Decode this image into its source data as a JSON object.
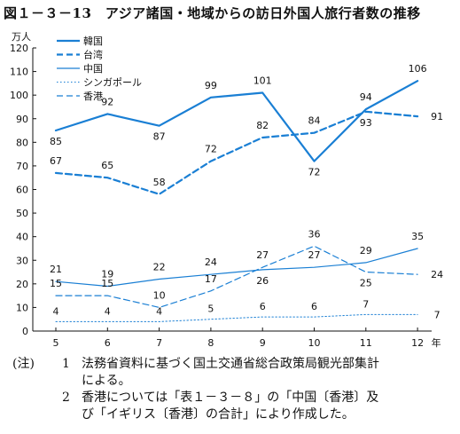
{
  "chart_data": {
    "type": "line",
    "title": "図１－３－13　アジア諸国・地域からの訪日外国人旅行者数の推移",
    "yunit": "万人",
    "xunit": "年",
    "x": [
      "5",
      "6",
      "7",
      "8",
      "9",
      "10",
      "11",
      "12"
    ],
    "ylim": [
      0,
      120
    ],
    "yticks": [
      0,
      10,
      20,
      30,
      40,
      50,
      60,
      70,
      80,
      90,
      100,
      110,
      120
    ],
    "grid": false,
    "legend_position": "top-left",
    "series": [
      {
        "name": "韓国",
        "style": "solid-thick",
        "color": "#1a7fd4",
        "values": [
          85,
          92,
          87,
          99,
          101,
          72,
          94,
          106
        ],
        "labels": [
          "85",
          "92",
          "87",
          "99",
          "101",
          "72",
          "94",
          "106"
        ]
      },
      {
        "name": "台湾",
        "style": "dashed-thick",
        "color": "#1a7fd4",
        "values": [
          67,
          65,
          58,
          72,
          82,
          84,
          93,
          91
        ],
        "labels": [
          "67",
          "65",
          "58",
          "72",
          "82",
          "84",
          "93",
          "91"
        ]
      },
      {
        "name": "中国",
        "style": "solid-thin",
        "color": "#1a7fd4",
        "values": [
          21,
          19,
          22,
          24,
          26,
          27,
          29,
          35
        ],
        "labels": [
          "21",
          "19",
          "22",
          "24",
          "26",
          "27",
          "29",
          "35"
        ]
      },
      {
        "name": "シンガポール",
        "style": "dotted-thin",
        "color": "#1a7fd4",
        "values": [
          4,
          4,
          4,
          5,
          6,
          6,
          7,
          7
        ],
        "labels": [
          "4",
          "4",
          "4",
          "5",
          "6",
          "6",
          "7",
          "7"
        ]
      },
      {
        "name": "香港",
        "style": "dashed-thin",
        "color": "#1a7fd4",
        "values": [
          15,
          15,
          10,
          17,
          27,
          36,
          25,
          24
        ],
        "labels": [
          "15",
          "15",
          "10",
          "17",
          "27",
          "36",
          "25",
          "24"
        ]
      }
    ]
  },
  "notes": {
    "mark": "(注)",
    "items": [
      {
        "num": "1",
        "line1": "法務省資料に基づく国土交通省総合政策局観光部集計",
        "line2": "による。"
      },
      {
        "num": "2",
        "line1": "香港については「表１－３－８」の「中国〔香港〕及",
        "line2": "び「イギリス〔香港〕の合計」により作成した。"
      }
    ]
  }
}
